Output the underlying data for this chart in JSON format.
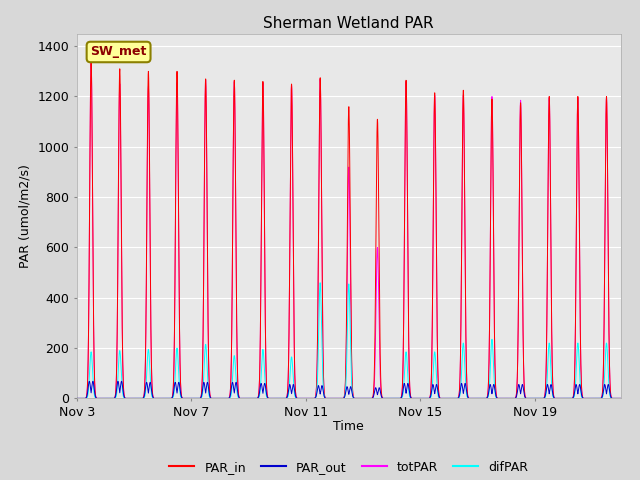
{
  "title": "Sherman Wetland PAR",
  "xlabel": "Time",
  "ylabel": "PAR (umol/m2/s)",
  "ylim": [
    0,
    1450
  ],
  "yticks": [
    0,
    200,
    400,
    600,
    800,
    1000,
    1200,
    1400
  ],
  "xtick_labels": [
    "Nov 3",
    "Nov 7",
    "Nov 11",
    "Nov 15",
    "Nov 19"
  ],
  "xtick_positions": [
    0,
    4,
    8,
    12,
    16
  ],
  "num_days": 19,
  "series_colors": {
    "PAR_in": "#ff0000",
    "PAR_out": "#0000cd",
    "totPAR": "#ff00ff",
    "difPAR": "#00ffff"
  },
  "background_color": "#d8d8d8",
  "plot_bg_color": "#e8e8e8",
  "annotation_text": "SW_met",
  "annotation_bg": "#ffff99",
  "annotation_border": "#8b8000",
  "title_fontsize": 11,
  "axis_fontsize": 9,
  "legend_fontsize": 9,
  "grid_color": "#ffffff",
  "par_in_peaks": [
    1340,
    1310,
    1300,
    1300,
    1270,
    1265,
    1260,
    1250,
    1275,
    1160,
    1110,
    1265,
    1215,
    1225,
    1190,
    1175,
    1200,
    1200,
    1200
  ],
  "par_out_peaks": [
    80,
    80,
    75,
    75,
    75,
    75,
    70,
    65,
    60,
    55,
    50,
    70,
    65,
    70,
    65,
    65,
    65,
    65,
    65
  ],
  "tot_par_peaks": [
    1340,
    1250,
    1240,
    1255,
    1265,
    1260,
    1255,
    1245,
    1270,
    920,
    600,
    1260,
    1205,
    1205,
    1200,
    1185,
    1195,
    1195,
    1195
  ],
  "dif_par_peaks": [
    185,
    190,
    195,
    200,
    215,
    170,
    195,
    165,
    460,
    455,
    0,
    185,
    185,
    220,
    235,
    0,
    220,
    220,
    220
  ]
}
